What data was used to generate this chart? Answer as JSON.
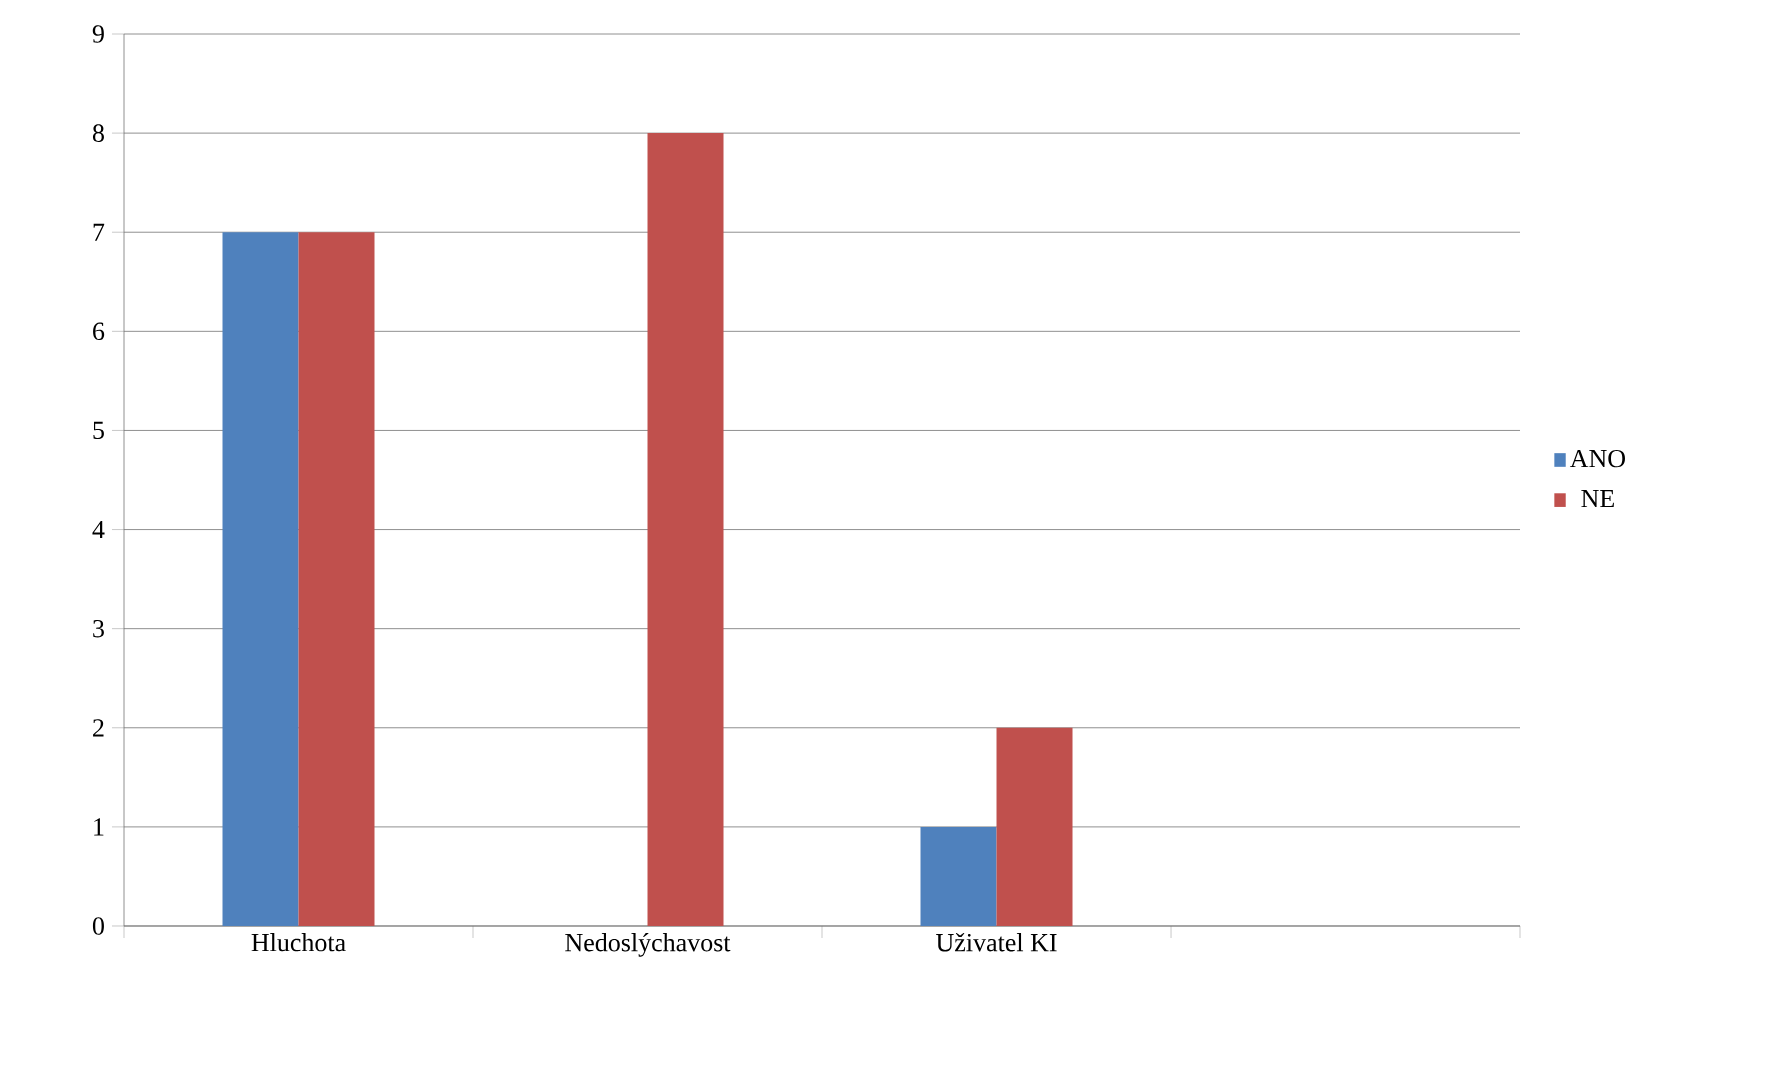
{
  "chart_data": {
    "type": "bar",
    "categories": [
      "Hluchota",
      "Nedoslýchavost",
      "Uživatel KI",
      null
    ],
    "series": [
      {
        "name": "ANO",
        "color": "#4f81bd",
        "values": [
          7,
          0,
          1,
          null
        ]
      },
      {
        "name": "NE",
        "color": "#c0504d",
        "values": [
          7,
          8,
          2,
          null
        ]
      }
    ],
    "ylim": [
      0,
      9
    ],
    "yticks": [
      0,
      1,
      2,
      3,
      4,
      5,
      6,
      7,
      8,
      9
    ],
    "grid": "y",
    "legend": "right"
  }
}
